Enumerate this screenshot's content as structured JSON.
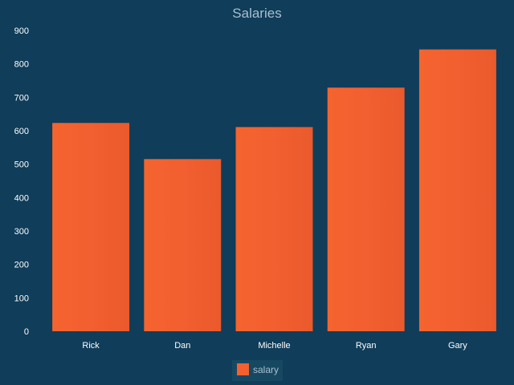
{
  "chart_data": {
    "type": "bar",
    "title": "Salaries",
    "categories": [
      "Rick",
      "Dan",
      "Michelle",
      "Ryan",
      "Gary"
    ],
    "series": [
      {
        "name": "salary",
        "values": [
          623.3,
          515.2,
          611.0,
          729.0,
          843.25
        ]
      }
    ],
    "ylim": [
      0,
      900
    ],
    "yticks": [
      0,
      100,
      200,
      300,
      400,
      500,
      600,
      700,
      800,
      900
    ],
    "grid": false,
    "legend_position": "bottom-center",
    "colors": {
      "background": "#0f3d5a",
      "bar": "#f2612f",
      "title": "#a9bfcf",
      "tick": "#ffffff",
      "legend_text": "#a9bfcf"
    }
  }
}
